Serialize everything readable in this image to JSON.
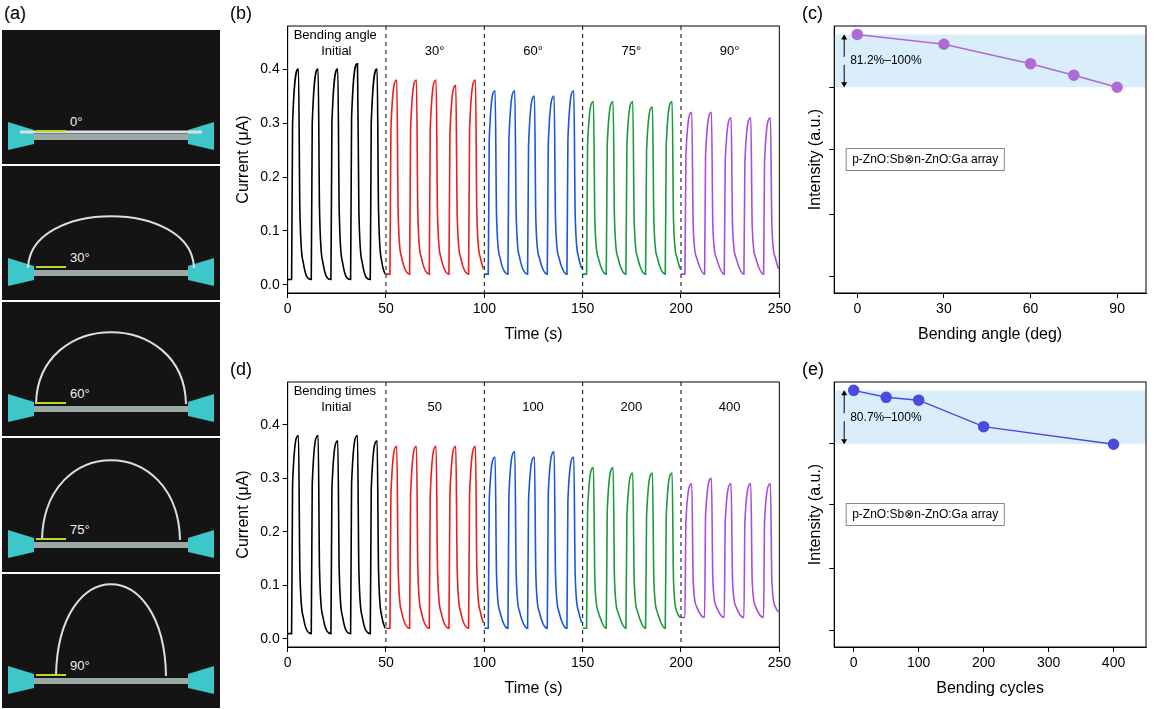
{
  "panel_a": {
    "panel": "(a)",
    "labels": [
      "0°",
      "30°",
      "60°",
      "75°",
      "90°"
    ]
  },
  "chart_data": [
    {
      "panel": "(b)",
      "type": "line",
      "title": "Bending angle",
      "x_label": "Time (s)",
      "y_label": "Current (μA)",
      "xlim": [
        0,
        250
      ],
      "xticks": [
        0,
        50,
        100,
        150,
        200,
        250
      ],
      "ylim": [
        -0.015,
        0.48
      ],
      "yticks": [
        {
          "value": 0,
          "label": "0.0"
        },
        {
          "value": 0.1,
          "label": "0.1"
        },
        {
          "value": 0.2,
          "label": "0.2"
        },
        {
          "value": 0.3,
          "label": "0.3"
        },
        {
          "value": 0.4,
          "label": "0.4"
        }
      ],
      "grid": false,
      "line_style": "solid",
      "dividers": [
        50,
        100,
        150,
        200
      ],
      "series": [
        {
          "name": "Initial",
          "color": "#000000",
          "x": [
            0,
            2,
            2.5,
            5.5,
            6.2,
            8,
            12,
            12.5,
            15.5,
            16.2,
            18,
            22,
            22.5,
            25.5,
            26.2,
            28,
            32,
            32.5,
            35.5,
            36.2,
            38,
            42,
            42.5,
            45.5,
            46.2,
            48,
            49.5
          ],
          "values": [
            0.01,
            0.01,
            0.3,
            0.4,
            0.14,
            0.04,
            0.01,
            0.3,
            0.4,
            0.14,
            0.04,
            0.01,
            0.3,
            0.4,
            0.14,
            0.04,
            0.01,
            0.31,
            0.41,
            0.14,
            0.04,
            0.01,
            0.3,
            0.4,
            0.14,
            0.04,
            0.02
          ]
        },
        {
          "name": "30°",
          "color": "#ee1c1c",
          "x": [
            50,
            52,
            52.5,
            55.5,
            56.2,
            58,
            62,
            62.5,
            65.5,
            66.2,
            68,
            72,
            72.5,
            75.5,
            76.2,
            78,
            82,
            82.5,
            85.5,
            86.2,
            88,
            92,
            92.5,
            95.5,
            96.2,
            98,
            99.5
          ],
          "values": [
            0.02,
            0.02,
            0.29,
            0.38,
            0.13,
            0.05,
            0.02,
            0.29,
            0.38,
            0.13,
            0.05,
            0.02,
            0.29,
            0.38,
            0.13,
            0.05,
            0.02,
            0.28,
            0.37,
            0.13,
            0.05,
            0.02,
            0.29,
            0.38,
            0.13,
            0.05,
            0.03
          ]
        },
        {
          "name": "60°",
          "color": "#1a56db",
          "x": [
            100,
            102,
            102.5,
            105.5,
            106.2,
            108,
            112,
            112.5,
            115.5,
            116.2,
            118,
            122,
            122.5,
            125.5,
            126.2,
            128,
            132,
            132.5,
            135.5,
            136.2,
            138,
            142,
            142.5,
            145.5,
            146.2,
            148,
            149.5
          ],
          "values": [
            0.02,
            0.02,
            0.27,
            0.36,
            0.13,
            0.05,
            0.02,
            0.27,
            0.36,
            0.13,
            0.05,
            0.02,
            0.26,
            0.35,
            0.12,
            0.05,
            0.02,
            0.26,
            0.35,
            0.12,
            0.05,
            0.02,
            0.27,
            0.36,
            0.13,
            0.05,
            0.03
          ]
        },
        {
          "name": "75°",
          "color": "#1a9a3a",
          "x": [
            150,
            152,
            152.5,
            155.5,
            156.2,
            158,
            162,
            162.5,
            165.5,
            166.2,
            168,
            172,
            172.5,
            175.5,
            176.2,
            178,
            182,
            182.5,
            185.5,
            186.2,
            188,
            192,
            192.5,
            195.5,
            196.2,
            198,
            199.5
          ],
          "values": [
            0.02,
            0.02,
            0.26,
            0.34,
            0.12,
            0.05,
            0.02,
            0.26,
            0.34,
            0.12,
            0.05,
            0.02,
            0.26,
            0.34,
            0.12,
            0.05,
            0.02,
            0.25,
            0.33,
            0.12,
            0.05,
            0.02,
            0.26,
            0.34,
            0.12,
            0.05,
            0.03
          ]
        },
        {
          "name": "90°",
          "color": "#a64de0",
          "x": [
            200,
            202,
            202.5,
            205.5,
            206.2,
            208,
            212,
            212.5,
            215.5,
            216.2,
            218,
            222,
            222.5,
            225.5,
            226.2,
            228,
            232,
            232.5,
            235.5,
            236.2,
            238,
            242,
            242.5,
            245.5,
            246.2,
            248,
            249.5
          ],
          "values": [
            0.02,
            0.02,
            0.24,
            0.32,
            0.11,
            0.05,
            0.02,
            0.24,
            0.32,
            0.11,
            0.05,
            0.02,
            0.23,
            0.31,
            0.11,
            0.05,
            0.02,
            0.23,
            0.31,
            0.11,
            0.05,
            0.02,
            0.23,
            0.31,
            0.11,
            0.05,
            0.03
          ]
        }
      ]
    },
    {
      "panel": "(c)",
      "type": "line",
      "x_label": "Bending angle (deg)",
      "y_label": "Intensity (a.u.)",
      "xlim": [
        -8,
        100
      ],
      "xticks": [
        0,
        30,
        60,
        90
      ],
      "ylim": [
        8,
        103
      ],
      "yticks": [
        14,
        36,
        59,
        81
      ],
      "tick_labels": "x",
      "grid": false,
      "marker": "circle",
      "line_style": "solid",
      "color": "#b06ad8",
      "x": [
        0,
        30,
        60,
        75,
        90
      ],
      "values": [
        100,
        96.5,
        89.6,
        85.5,
        81.2
      ],
      "band": [
        81.2,
        100
      ],
      "band_label": "81.2%–100%",
      "annotation": "p-ZnO:Sb⊗n-ZnO:Ga array"
    },
    {
      "panel": "(d)",
      "type": "line",
      "title": "Bending times",
      "x_label": "Time (s)",
      "y_label": "Current (μA)",
      "xlim": [
        0,
        250
      ],
      "xticks": [
        0,
        50,
        100,
        150,
        200,
        250
      ],
      "ylim": [
        -0.015,
        0.48
      ],
      "yticks": [
        {
          "value": 0,
          "label": "0.0"
        },
        {
          "value": 0.1,
          "label": "0.1"
        },
        {
          "value": 0.2,
          "label": "0.2"
        },
        {
          "value": 0.3,
          "label": "0.3"
        },
        {
          "value": 0.4,
          "label": "0.4"
        }
      ],
      "grid": false,
      "line_style": "solid",
      "dividers": [
        50,
        100,
        150,
        200
      ],
      "series": [
        {
          "name": "Initial",
          "color": "#000000",
          "x": [
            0,
            2,
            2.5,
            5.5,
            6.2,
            8,
            12,
            12.5,
            15.5,
            16.2,
            18,
            22,
            22.5,
            25.5,
            26.2,
            28,
            32,
            32.5,
            35.5,
            36.2,
            38,
            42,
            42.5,
            45.5,
            46.2,
            48,
            49.5
          ],
          "values": [
            0.01,
            0.01,
            0.29,
            0.38,
            0.13,
            0.04,
            0.01,
            0.29,
            0.38,
            0.13,
            0.04,
            0.01,
            0.28,
            0.37,
            0.13,
            0.04,
            0.01,
            0.29,
            0.38,
            0.13,
            0.04,
            0.01,
            0.28,
            0.37,
            0.13,
            0.04,
            0.02
          ]
        },
        {
          "name": "50",
          "color": "#ee1c1c",
          "x": [
            50,
            52,
            52.5,
            55.5,
            56.2,
            58,
            62,
            62.5,
            65.5,
            66.2,
            68,
            72,
            72.5,
            75.5,
            76.2,
            78,
            82,
            82.5,
            85.5,
            86.2,
            88,
            92,
            92.5,
            95.5,
            96.2,
            98,
            99.5
          ],
          "values": [
            0.02,
            0.02,
            0.27,
            0.36,
            0.13,
            0.05,
            0.02,
            0.27,
            0.36,
            0.13,
            0.05,
            0.02,
            0.27,
            0.36,
            0.13,
            0.05,
            0.02,
            0.27,
            0.36,
            0.13,
            0.05,
            0.02,
            0.27,
            0.36,
            0.13,
            0.05,
            0.03
          ]
        },
        {
          "name": "100",
          "color": "#1a56db",
          "x": [
            100,
            102,
            102.5,
            105.5,
            106.2,
            108,
            112,
            112.5,
            115.5,
            116.2,
            118,
            122,
            122.5,
            125.5,
            126.2,
            128,
            132,
            132.5,
            135.5,
            136.2,
            138,
            142,
            142.5,
            145.5,
            146.2,
            148,
            149.5
          ],
          "values": [
            0.02,
            0.02,
            0.26,
            0.34,
            0.12,
            0.05,
            0.02,
            0.27,
            0.35,
            0.12,
            0.05,
            0.02,
            0.26,
            0.34,
            0.12,
            0.05,
            0.02,
            0.27,
            0.35,
            0.12,
            0.05,
            0.02,
            0.26,
            0.34,
            0.12,
            0.05,
            0.03
          ]
        },
        {
          "name": "200",
          "color": "#1a9a3a",
          "x": [
            150,
            152,
            152.5,
            155.5,
            156.2,
            158,
            162,
            162.5,
            165.5,
            166.2,
            168,
            172,
            172.5,
            175.5,
            176.2,
            178,
            182,
            182.5,
            185.5,
            186.2,
            188,
            192,
            192.5,
            195.5,
            196.2,
            198,
            199.5
          ],
          "values": [
            0.02,
            0.02,
            0.24,
            0.32,
            0.11,
            0.05,
            0.02,
            0.24,
            0.32,
            0.11,
            0.05,
            0.02,
            0.23,
            0.31,
            0.11,
            0.05,
            0.02,
            0.23,
            0.31,
            0.11,
            0.05,
            0.02,
            0.23,
            0.31,
            0.11,
            0.05,
            0.04
          ]
        },
        {
          "name": "400",
          "color": "#a64de0",
          "x": [
            200,
            202,
            202.5,
            205.5,
            206.2,
            208,
            212,
            212.5,
            215.5,
            216.2,
            218,
            222,
            222.5,
            225.5,
            226.2,
            228,
            232,
            232.5,
            235.5,
            236.2,
            238,
            242,
            242.5,
            245.5,
            246.2,
            248,
            249.5
          ],
          "values": [
            0.04,
            0.04,
            0.22,
            0.29,
            0.11,
            0.06,
            0.04,
            0.23,
            0.3,
            0.11,
            0.06,
            0.04,
            0.22,
            0.29,
            0.11,
            0.06,
            0.04,
            0.22,
            0.29,
            0.11,
            0.06,
            0.04,
            0.22,
            0.29,
            0.11,
            0.06,
            0.05
          ]
        }
      ]
    },
    {
      "panel": "(e)",
      "type": "line",
      "x_label": "Bending cycles",
      "y_label": "Intensity (a.u.)",
      "xlim": [
        -30,
        450
      ],
      "xticks": [
        0,
        100,
        200,
        300,
        400
      ],
      "ylim": [
        8,
        103
      ],
      "yticks": [
        14,
        36,
        59,
        81
      ],
      "tick_labels": "x",
      "grid": false,
      "marker": "circle",
      "line_style": "solid",
      "color": "#4a4ae0",
      "x": [
        0,
        50,
        100,
        200,
        400
      ],
      "values": [
        100,
        97.5,
        96.5,
        87.0,
        80.7
      ],
      "band": [
        80.7,
        100
      ],
      "band_label": "80.7%–100%",
      "annotation": "p-ZnO:Sb⊗n-ZnO:Ga array"
    }
  ]
}
